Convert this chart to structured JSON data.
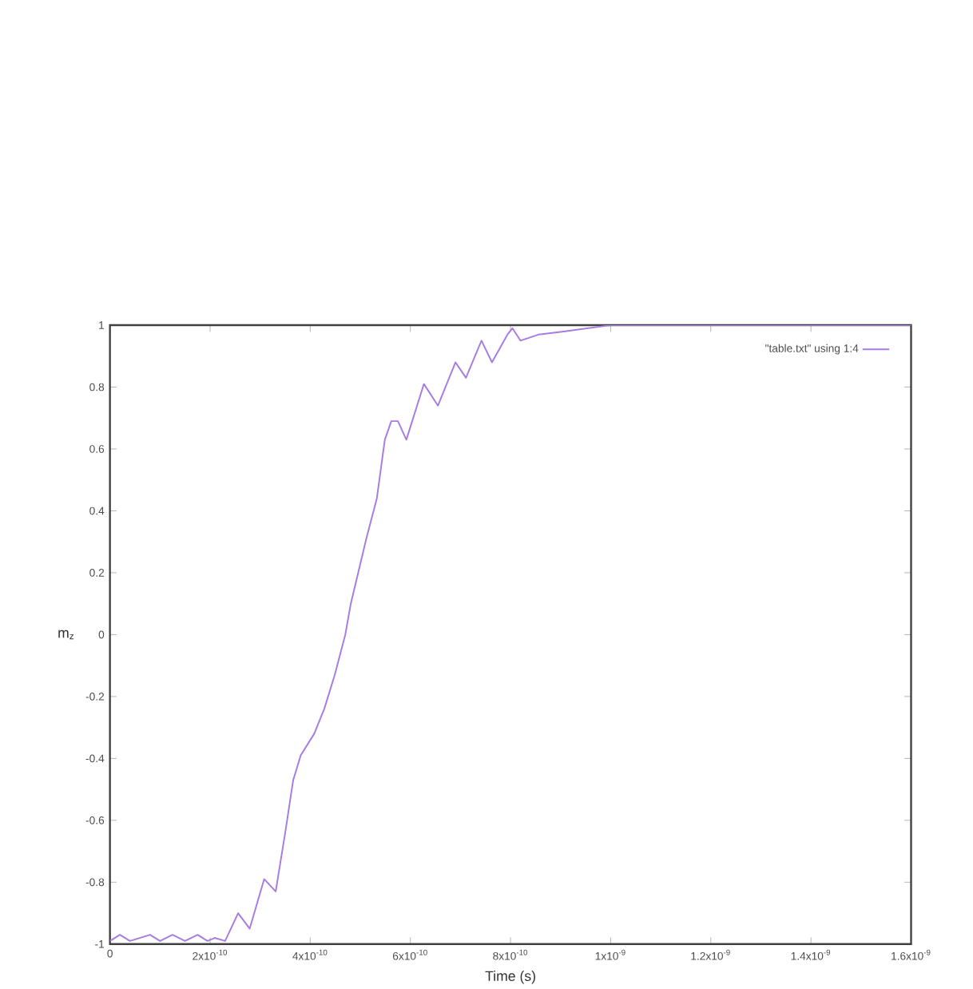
{
  "chart_data": {
    "type": "line",
    "xlabel": "Time (s)",
    "ylabel": "m$_{z}$",
    "xlim": [
      0,
      1.6e-09
    ],
    "ylim": [
      -1,
      1
    ],
    "xticks": [
      0,
      {
        "value": 2e-10,
        "label": "2x10$^{-10}$"
      },
      {
        "value": 4e-10,
        "label": "4x10$^{-10}$"
      },
      {
        "value": 6e-10,
        "label": "6x10$^{-10}$"
      },
      {
        "value": 8e-10,
        "label": "8x10$^{-10}$"
      },
      {
        "value": 1e-09,
        "label": "1x10$^{-9}$"
      },
      {
        "value": 1.2e-09,
        "label": "1.2x10$^{-9}$"
      },
      {
        "value": 1.4e-09,
        "label": "1.4x10$^{-9}$"
      },
      {
        "value": 1.6e-09,
        "label": "1.6x10$^{-9}$"
      }
    ],
    "yticks": [
      -1,
      -0.8,
      -0.6,
      -0.4,
      -0.2,
      0,
      0.2,
      0.4,
      0.6,
      0.8,
      1
    ],
    "grid": false,
    "legend": "top right",
    "marker": "none",
    "line_style": "solid",
    "series": [
      {
        "name": "\"table.txt\" using 1:4",
        "color": "#a77ce0",
        "x": [
          0,
          2e-11,
          4e-11,
          8e-11,
          1e-10,
          1.25e-10,
          1.5e-10,
          1.75e-10,
          1.95e-10,
          2.09e-10,
          2.3e-10,
          2.56e-10,
          2.79e-10,
          3.08e-10,
          3.31e-10,
          3.5e-10,
          3.66e-10,
          3.81e-10,
          4.08e-10,
          4.28e-10,
          4.49e-10,
          4.7e-10,
          4.81e-10,
          5.12e-10,
          5.33e-10,
          5.49e-10,
          5.62e-10,
          5.75e-10,
          5.92e-10,
          6.27e-10,
          6.55e-10,
          6.9e-10,
          7.11e-10,
          7.42e-10,
          7.63e-10,
          7.94e-10,
          8.04e-10,
          8.2e-10,
          8.57e-10,
          9.09e-10,
          1e-09,
          1.2e-09,
          1.4e-09,
          1.6e-09
        ],
        "values": [
          -0.99,
          -0.97,
          -0.99,
          -0.97,
          -0.99,
          -0.97,
          -0.99,
          -0.97,
          -0.99,
          -0.98,
          -0.99,
          -0.9,
          -0.95,
          -0.79,
          -0.83,
          -0.64,
          -0.47,
          -0.39,
          -0.32,
          -0.24,
          -0.13,
          0,
          0.1,
          0.31,
          0.44,
          0.63,
          0.69,
          0.69,
          0.63,
          0.81,
          0.74,
          0.88,
          0.83,
          0.95,
          0.88,
          0.97,
          0.99,
          0.95,
          0.97,
          0.98,
          1,
          1,
          1,
          1
        ]
      }
    ]
  }
}
